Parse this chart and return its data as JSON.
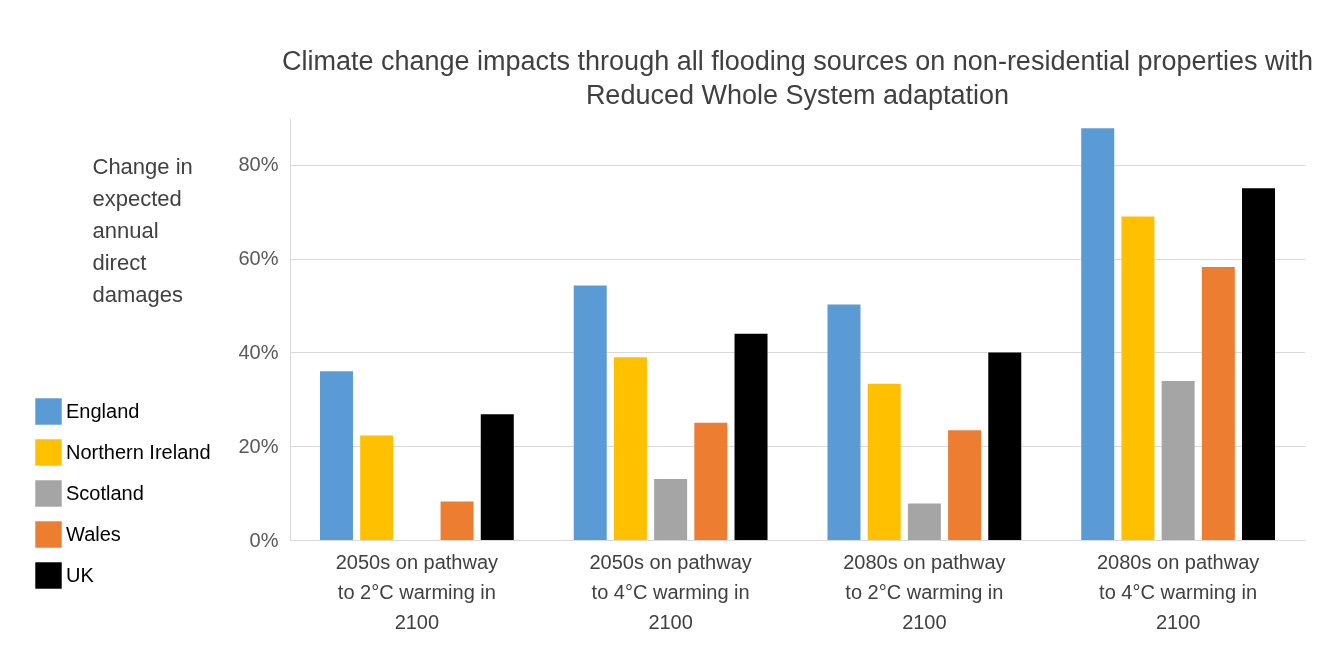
{
  "chart_data": {
    "type": "bar",
    "title": "Climate change impacts through all flooding sources on non-residential properties with Reduced Whole System adaptation",
    "ylabel": "Change in expected annual direct damages",
    "categories": [
      "2050s on pathway to 2°C warming in 2100",
      "2050s on pathway to 4°C warming in 2100",
      "2080s on pathway to 2°C warming in 2100",
      "2080s on pathway to 4°C warming in 2100"
    ],
    "series": [
      {
        "name": "England",
        "color": "#5b9bd5",
        "values": [
          36,
          54.3,
          50.2,
          87.8
        ]
      },
      {
        "name": "Northern Ireland",
        "color": "#ffc000",
        "values": [
          22.3,
          39,
          33.3,
          69
        ]
      },
      {
        "name": "Scotland",
        "color": "#a5a5a5",
        "values": [
          0,
          13,
          7.8,
          33.9
        ]
      },
      {
        "name": "Wales",
        "color": "#ed7d31",
        "values": [
          8.2,
          25,
          23.4,
          58.2
        ]
      },
      {
        "name": "UK",
        "color": "#000000",
        "values": [
          26.8,
          44,
          40,
          75
        ]
      }
    ],
    "ylim": [
      0,
      90
    ],
    "yticks": [
      {
        "value": 0,
        "label": "0%"
      },
      {
        "value": 20,
        "label": "20%"
      },
      {
        "value": 40,
        "label": "40%"
      },
      {
        "value": 60,
        "label": "60%"
      },
      {
        "value": 80,
        "label": "80%"
      }
    ],
    "grid": "y",
    "legend": "left"
  }
}
